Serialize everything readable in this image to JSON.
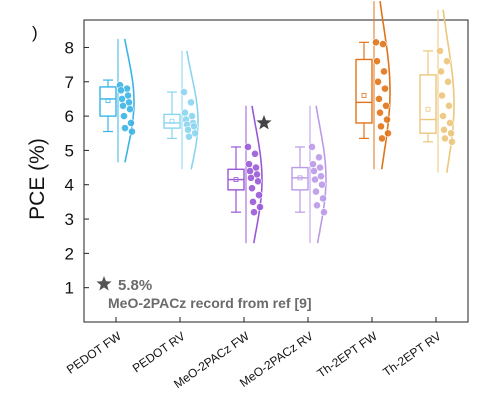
{
  "chart_data": {
    "type": "box",
    "ylabel": "PCE (%)",
    "xlabel": "",
    "title": "",
    "ylim": [
      0,
      8.8
    ],
    "yticks": [
      1,
      2,
      3,
      4,
      5,
      6,
      7,
      8
    ],
    "grid": false,
    "categories": [
      "PEDOT FW",
      "PEDOT RV",
      "MeO-2PACz FW",
      "MeO-2PACz RV",
      "Th-2EPT FW",
      "Th-2EPT RV"
    ],
    "colors": [
      "#3ab4e6",
      "#8ad4f0",
      "#9a58d6",
      "#bb9ae8",
      "#e07418",
      "#ecc67a"
    ],
    "series": [
      {
        "name": "PEDOT FW",
        "q1": 6.0,
        "median": 6.5,
        "q3": 6.85,
        "mean": 6.45,
        "whisker_low": 5.55,
        "whisker_high": 7.05,
        "points": [
          6.9,
          6.8,
          6.75,
          6.6,
          6.5,
          6.4,
          6.3,
          6.2,
          6.0,
          5.8,
          5.65,
          5.55
        ]
      },
      {
        "name": "PEDOT RV",
        "q1": 5.65,
        "median": 5.8,
        "q3": 6.05,
        "mean": 5.85,
        "whisker_low": 5.35,
        "whisker_high": 6.7,
        "points": [
          6.7,
          6.4,
          6.1,
          6.0,
          5.9,
          5.8,
          5.75,
          5.7,
          5.6,
          5.5,
          5.4
        ]
      },
      {
        "name": "MeO-2PACz FW",
        "q1": 3.85,
        "median": 4.15,
        "q3": 4.45,
        "mean": 4.15,
        "whisker_low": 3.2,
        "whisker_high": 5.1,
        "points": [
          5.1,
          4.9,
          4.6,
          4.5,
          4.4,
          4.3,
          4.2,
          4.1,
          3.9,
          3.7,
          3.5,
          3.35,
          3.2
        ]
      },
      {
        "name": "MeO-2PACz RV",
        "q1": 3.85,
        "median": 4.2,
        "q3": 4.5,
        "mean": 4.2,
        "whisker_low": 3.2,
        "whisker_high": 5.1,
        "points": [
          5.1,
          4.8,
          4.6,
          4.5,
          4.4,
          4.25,
          4.15,
          4.0,
          3.8,
          3.6,
          3.4,
          3.2
        ]
      },
      {
        "name": "Th-2EPT FW",
        "q1": 5.8,
        "median": 6.4,
        "q3": 7.65,
        "mean": 6.6,
        "whisker_low": 5.35,
        "whisker_high": 8.15,
        "points": [
          8.15,
          8.1,
          7.6,
          7.3,
          7.0,
          6.8,
          6.5,
          6.3,
          6.1,
          5.9,
          5.7,
          5.5,
          5.35
        ]
      },
      {
        "name": "Th-2EPT RV",
        "q1": 5.5,
        "median": 5.9,
        "q3": 7.2,
        "mean": 6.2,
        "whisker_low": 5.25,
        "whisker_high": 7.9,
        "points": [
          7.9,
          7.6,
          7.3,
          7.0,
          6.6,
          6.3,
          6.0,
          5.8,
          5.6,
          5.5,
          5.35,
          5.25
        ]
      }
    ],
    "reference_marker": {
      "category": "MeO-2PACz FW",
      "value": 5.8,
      "symbol": "star"
    },
    "legend": {
      "symbol": "star",
      "value_label": "5.8%",
      "text": "MeO-2PACz record from ref [9]",
      "placement": "bottom-left"
    },
    "top_left_mark": ")"
  }
}
